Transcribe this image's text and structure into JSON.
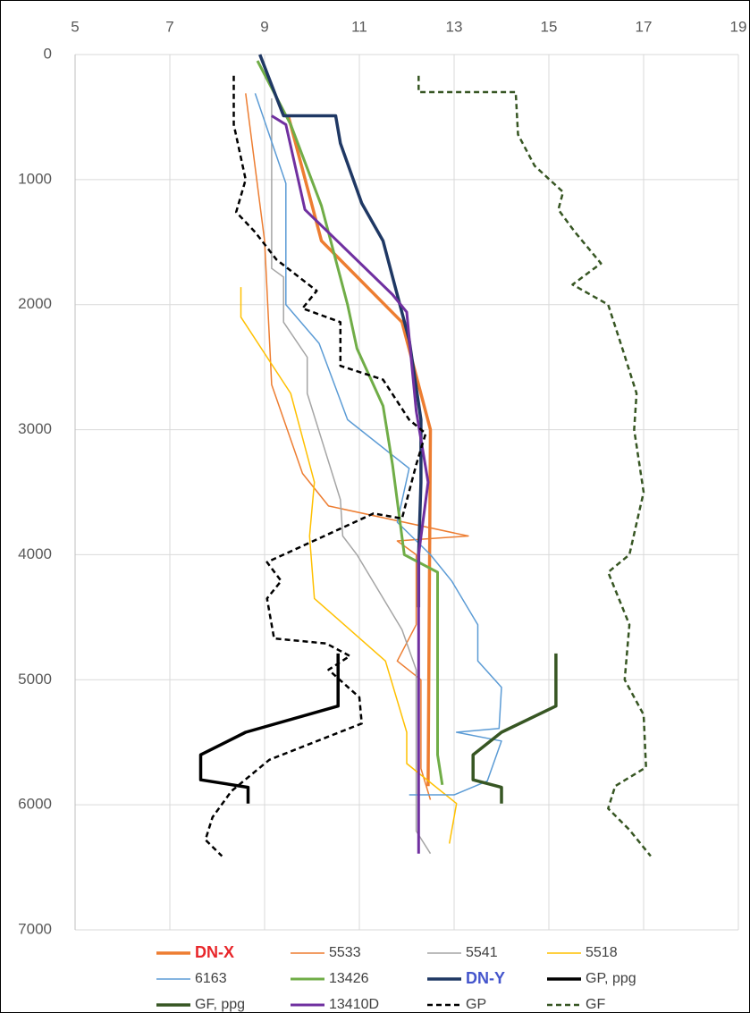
{
  "chart_data": {
    "type": "line",
    "xlim": [
      5,
      19
    ],
    "xticks": [
      5,
      7,
      9,
      11,
      13,
      15,
      17,
      19
    ],
    "x_axis_position": "top",
    "ylim": [
      0,
      7000
    ],
    "yticks": [
      0,
      1000,
      2000,
      3000,
      4000,
      5000,
      6000,
      7000
    ],
    "y_inverted": true,
    "grid": true,
    "legend": "bottom",
    "series": [
      {
        "name": "DN-X",
        "color": "#ed7d31",
        "width": 3.5,
        "dash": false,
        "label_color": "#e8262a",
        "label_bold": true,
        "values": [
          9.5,
          10.2,
          11.9,
          12.5,
          12.45
        ],
        "depth": [
          490,
          1490,
          2140,
          3000,
          5850
        ]
      },
      {
        "name": "5533",
        "color": "#ed7d31",
        "width": 1.5,
        "dash": false,
        "values": [
          8.6,
          9,
          9.15,
          9.8,
          10.35,
          13.3,
          11.8,
          12.2,
          12.2,
          11.8,
          12.3,
          12.3,
          12.5
        ],
        "depth": [
          310,
          1490,
          2640,
          3350,
          3610,
          3850,
          3890,
          4000,
          4560,
          4850,
          5000,
          5710,
          5960
        ]
      },
      {
        "name": "5541",
        "color": "#a5a5a5",
        "width": 1.5,
        "dash": false,
        "values": [
          9.15,
          9.15,
          9.4,
          9.4,
          9.9,
          9.9,
          10.6,
          10.65,
          10.95,
          11.9,
          12.2,
          12.2,
          12.5
        ],
        "depth": [
          350,
          1710,
          1780,
          2140,
          2420,
          2710,
          3560,
          3850,
          4000,
          4600,
          4920,
          6210,
          6390
        ]
      },
      {
        "name": "5518",
        "color": "#ffc000",
        "width": 1.5,
        "dash": false,
        "values": [
          8.5,
          8.5,
          9.55,
          10.05,
          9.95,
          10.05,
          11.55,
          12,
          12,
          13.05,
          12.9
        ],
        "depth": [
          1860,
          2100,
          2710,
          3420,
          3850,
          4350,
          4850,
          5420,
          5670,
          5990,
          6310
        ]
      },
      {
        "name": "6163",
        "color": "#5b9bd5",
        "width": 1.5,
        "dash": false,
        "values": [
          8.8,
          9.45,
          9.45,
          10.15,
          10.75,
          12.05,
          11.8,
          12.5,
          12.95,
          13.5,
          13.5,
          14,
          13.95,
          13.05,
          14,
          13.7,
          13,
          12.05
        ],
        "depth": [
          310,
          1030,
          2000,
          2310,
          2920,
          3310,
          3740,
          4000,
          4210,
          4560,
          4850,
          5060,
          5390,
          5420,
          5490,
          5810,
          5920,
          5920
        ]
      },
      {
        "name": "13426",
        "color": "#70ad47",
        "width": 3,
        "dash": false,
        "values": [
          8.85,
          9.55,
          10.2,
          10.75,
          10.95,
          11.5,
          11.7,
          11.95,
          12.65,
          12.65,
          12.75
        ],
        "depth": [
          50,
          560,
          1210,
          2000,
          2350,
          2810,
          3280,
          4000,
          4140,
          5600,
          5840
        ]
      },
      {
        "name": "DN-Y",
        "color": "#1f3864",
        "width": 3.5,
        "dash": false,
        "label_color": "#4455cc",
        "label_bold": true,
        "values": [
          8.9,
          9.4,
          10.5,
          10.6,
          11.05,
          11.5,
          12.05,
          12.3,
          12.3,
          12.25,
          12.25
        ],
        "depth": [
          0,
          490,
          490,
          710,
          1190,
          1490,
          2280,
          2920,
          3420,
          4000,
          4420
        ]
      },
      {
        "name": "GP, ppg",
        "color": "#000000",
        "width": 3.5,
        "dash": false,
        "values": [
          10.55,
          10.55,
          8.6,
          7.65,
          7.65,
          8.65,
          8.65
        ],
        "depth": [
          4790,
          5210,
          5420,
          5600,
          5800,
          5860,
          5990
        ]
      },
      {
        "name": "GF, ppg",
        "color": "#375623",
        "width": 3.5,
        "dash": false,
        "values": [
          15.15,
          15.15,
          14,
          13.4,
          13.4,
          14,
          14
        ],
        "depth": [
          4790,
          5210,
          5420,
          5600,
          5800,
          5860,
          5990
        ]
      },
      {
        "name": "13410D",
        "color": "#7030a0",
        "width": 3,
        "dash": false,
        "values": [
          9.15,
          9.45,
          9.85,
          11.7,
          12,
          12.2,
          12.45,
          12.25,
          12.25
        ],
        "depth": [
          490,
          560,
          1240,
          1920,
          2060,
          2850,
          3420,
          4000,
          6390
        ]
      },
      {
        "name": "GP",
        "color": "#000000",
        "width": 2.5,
        "dash": true,
        "values": [
          8.35,
          8.35,
          8.6,
          8.4,
          8.8,
          9.25,
          10.1,
          9.8,
          10.6,
          10.6,
          11.5,
          12.05,
          12.4,
          12.2,
          11.9,
          11.3,
          9.05,
          9.35,
          9.05,
          9.2,
          10.3,
          10.8,
          10.35,
          11,
          11.05,
          9.1,
          8.3,
          7.9,
          7.75,
          8.1
        ],
        "depth": [
          170,
          560,
          1000,
          1260,
          1420,
          1640,
          1890,
          2030,
          2140,
          2490,
          2600,
          2920,
          3030,
          3280,
          3710,
          3670,
          4060,
          4210,
          4350,
          4670,
          4710,
          4810,
          4920,
          5140,
          5350,
          5640,
          5890,
          6100,
          6280,
          6410
        ]
      },
      {
        "name": "GF",
        "color": "#375623",
        "width": 2.5,
        "dash": true,
        "values": [
          12.25,
          12.25,
          14.3,
          14.35,
          14.7,
          15.3,
          15.2,
          15.55,
          16.1,
          15.5,
          16.25,
          16.55,
          16.85,
          16.8,
          17,
          16.7,
          16.25,
          16.7,
          16.6,
          17,
          17.05,
          16.4,
          16.25,
          16.7,
          17.15
        ],
        "depth": [
          170,
          300,
          300,
          640,
          890,
          1100,
          1240,
          1420,
          1670,
          1840,
          2000,
          2350,
          2710,
          3000,
          3500,
          4000,
          4140,
          4560,
          5000,
          5280,
          5700,
          5850,
          6030,
          6200,
          6410
        ]
      }
    ]
  }
}
